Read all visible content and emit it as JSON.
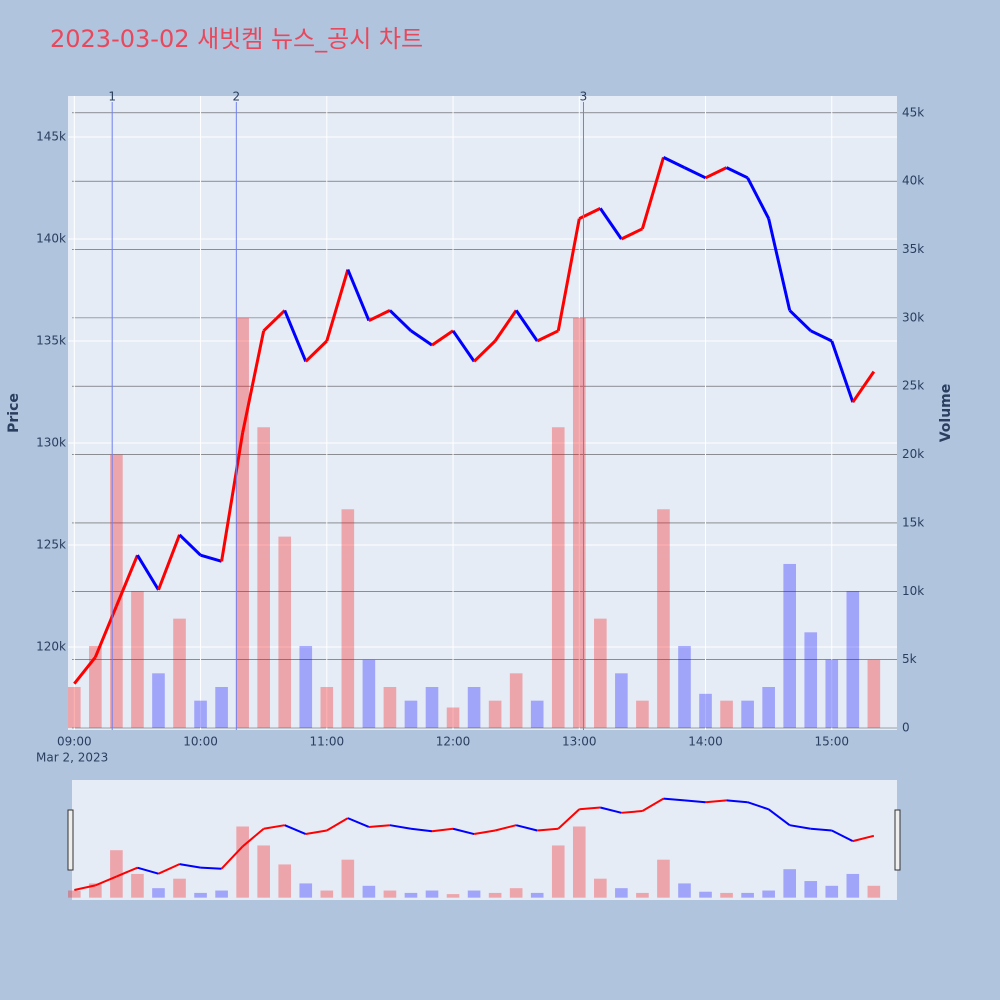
{
  "chart_data": {
    "type": "price-volume",
    "title": "2023-03-02 새빗켐 뉴스_공시 차트",
    "y_label": "Price",
    "y2_label": "Volume",
    "x_sublabel": "Mar 2, 2023",
    "x": [
      "09:00",
      "09:10",
      "09:20",
      "09:30",
      "09:40",
      "09:50",
      "10:00",
      "10:10",
      "10:20",
      "10:30",
      "10:40",
      "10:50",
      "11:00",
      "11:10",
      "11:20",
      "11:30",
      "11:40",
      "11:50",
      "12:00",
      "12:10",
      "12:20",
      "12:30",
      "12:40",
      "12:50",
      "13:00",
      "13:10",
      "13:20",
      "13:30",
      "13:40",
      "13:50",
      "14:00",
      "14:10",
      "14:20",
      "14:30",
      "14:40",
      "14:50",
      "15:00",
      "15:10",
      "15:20"
    ],
    "price": [
      118200,
      119500,
      122000,
      124500,
      122800,
      125500,
      124500,
      124200,
      130500,
      135500,
      136500,
      134000,
      135000,
      138500,
      136000,
      136500,
      135500,
      134800,
      135500,
      134000,
      135000,
      136500,
      135000,
      135500,
      141000,
      141500,
      140000,
      140500,
      144000,
      143500,
      143000,
      143500,
      143000,
      141000,
      136500,
      135500,
      135000,
      132000,
      133500
    ],
    "volume": [
      3000,
      6000,
      20000,
      10000,
      4000,
      8000,
      2000,
      3000,
      30000,
      22000,
      14000,
      6000,
      3000,
      16000,
      5000,
      3000,
      2000,
      3000,
      1500,
      3000,
      2000,
      4000,
      2000,
      22000,
      30000,
      8000,
      4000,
      2000,
      16000,
      6000,
      2500,
      2000,
      2000,
      3000,
      12000,
      7000,
      5000,
      10000,
      5000
    ],
    "up_color": "#ff0000",
    "down_color": "#0000ff",
    "annotations": [
      {
        "x": "09:18",
        "text": "1"
      },
      {
        "x": "10:17",
        "text": "2"
      },
      {
        "x": "13:02",
        "text": "3"
      }
    ],
    "xlim": [
      "08:57",
      "15:31"
    ],
    "xticks": [
      "09:00",
      "10:00",
      "11:00",
      "12:00",
      "13:00",
      "14:00",
      "15:00"
    ],
    "ylim": [
      115930,
      147010
    ],
    "yticks": [
      {
        "value": 120000,
        "label": "120k"
      },
      {
        "value": 125000,
        "label": "125k"
      },
      {
        "value": 130000,
        "label": "130k"
      },
      {
        "value": 135000,
        "label": "135k"
      },
      {
        "value": 140000,
        "label": "140k"
      },
      {
        "value": 145000,
        "label": "145k"
      }
    ],
    "y2lim": [
      -146,
      46230
    ],
    "y2ticks": [
      0,
      {
        "value": 5000,
        "label": "5k"
      },
      {
        "value": 10000,
        "label": "10k"
      },
      {
        "value": 15000,
        "label": "15k"
      },
      {
        "value": 20000,
        "label": "20k"
      },
      {
        "value": 25000,
        "label": "25k"
      },
      {
        "value": 30000,
        "label": "30k"
      },
      {
        "value": 35000,
        "label": "35k"
      },
      {
        "value": 40000,
        "label": "40k"
      },
      {
        "value": 45000,
        "label": "45k"
      }
    ],
    "grid": true
  }
}
